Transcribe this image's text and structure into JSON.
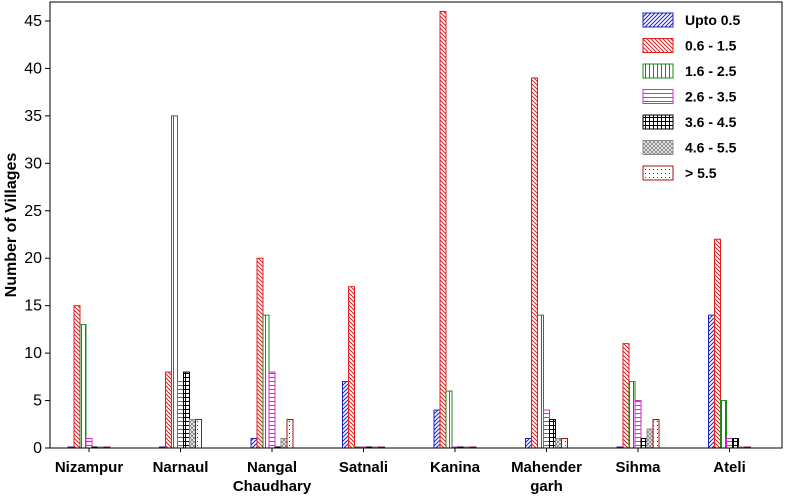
{
  "chart_data": {
    "type": "bar",
    "ylabel": "Number of Villages",
    "xlabel": "",
    "ylim": [
      0,
      47
    ],
    "yticks": [
      0,
      5,
      10,
      15,
      20,
      25,
      30,
      35,
      40,
      45
    ],
    "legend_position": "top-right",
    "categories": [
      [
        "Nizampur"
      ],
      [
        "Narnaul"
      ],
      [
        "Nangal",
        "Chaudhary"
      ],
      [
        "Satnali"
      ],
      [
        "Kanina"
      ],
      [
        "Mahender",
        "garh"
      ],
      [
        "Sihma"
      ],
      [
        "Ateli"
      ]
    ],
    "series": [
      {
        "name": "Upto 0.5",
        "color": "#1f1fcc",
        "pattern": "diagonal-up",
        "values": [
          0,
          0,
          1,
          7,
          4,
          1,
          0,
          14
        ]
      },
      {
        "name": "0.6 - 1.5",
        "color": "#e02020",
        "pattern": "diagonal-down",
        "values": [
          15,
          8,
          20,
          17,
          46,
          39,
          11,
          22
        ]
      },
      {
        "name": "1.6 - 2.5",
        "color": "#1a8a1a",
        "pattern": "vertical",
        "values": [
          13,
          35,
          14,
          0,
          6,
          14,
          7,
          5
        ]
      },
      {
        "name": "2.6 - 3.5",
        "color": "#e020e0",
        "pattern": "horizontal",
        "values": [
          1,
          7,
          8,
          0,
          0,
          4,
          5,
          1
        ]
      },
      {
        "name": "3.6 - 4.5",
        "color": "#000000",
        "pattern": "grid",
        "values": [
          0,
          8,
          0,
          0,
          0,
          3,
          1,
          1
        ]
      },
      {
        "name": "4.6 - 5.5",
        "color": "#888888",
        "pattern": "crosshatch",
        "values": [
          0,
          3,
          1,
          0,
          0,
          1,
          2,
          0
        ]
      },
      {
        "name": "> 5.5",
        "color": "#a01010",
        "pattern": "dots",
        "values": [
          0,
          3,
          3,
          0,
          0,
          1,
          3,
          0
        ]
      }
    ]
  }
}
